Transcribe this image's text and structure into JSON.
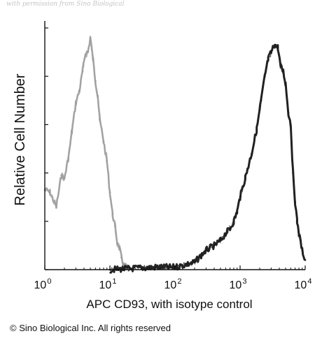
{
  "watermark": "with permission from Sino Biological",
  "copyright": "© Sino Biological Inc. All rights reserved",
  "chart_data": {
    "type": "area",
    "xlabel": "APC CD93, with isotype control",
    "ylabel": "Relative Cell Number",
    "xscale": "log",
    "xlim": [
      1,
      10000
    ],
    "ylim": [
      0,
      100
    ],
    "xticks": [
      {
        "value": 1,
        "base": "10",
        "exp": "0"
      },
      {
        "value": 10,
        "base": "10",
        "exp": "1"
      },
      {
        "value": 100,
        "base": "10",
        "exp": "2"
      },
      {
        "value": 1000,
        "base": "10",
        "exp": "3"
      },
      {
        "value": 10000,
        "base": "10",
        "exp": "4"
      }
    ],
    "yticks_labeled": false,
    "grid": false,
    "series": [
      {
        "role": "isotype control",
        "color": "#9a9a9a",
        "x": [
          1.0,
          1.2,
          1.5,
          1.8,
          2.0,
          2.3,
          2.6,
          3.0,
          3.4,
          3.8,
          4.2,
          4.6,
          5.0,
          5.5,
          6.0,
          6.5,
          7.0,
          8.0,
          9.0,
          10.0,
          11.0,
          12.0,
          13.0,
          14.0,
          15.0,
          16.0,
          18.0,
          20.0
        ],
        "y": [
          33,
          32,
          26,
          39,
          38,
          46,
          57,
          69,
          74,
          82,
          89,
          90,
          96,
          87,
          78,
          72,
          62,
          53,
          45,
          32,
          23,
          18,
          11,
          9,
          5,
          2,
          1,
          0
        ]
      },
      {
        "role": "APC CD93",
        "color": "#1a1a1a",
        "x": [
          10,
          50,
          100,
          200,
          300,
          400,
          500,
          600,
          700,
          800,
          900,
          1000,
          1200,
          1500,
          1800,
          2100,
          2400,
          2700,
          3000,
          3400,
          3800,
          4200,
          4600,
          5000,
          5500,
          6000,
          6500,
          7000,
          7500,
          8000,
          9000,
          10000
        ],
        "y": [
          0,
          1,
          1,
          3,
          8,
          10,
          12,
          15,
          17,
          20,
          24,
          30,
          38,
          48,
          58,
          70,
          80,
          87,
          90,
          93,
          92,
          84,
          82,
          77,
          65,
          60,
          40,
          28,
          20,
          15,
          8,
          4
        ]
      }
    ]
  }
}
